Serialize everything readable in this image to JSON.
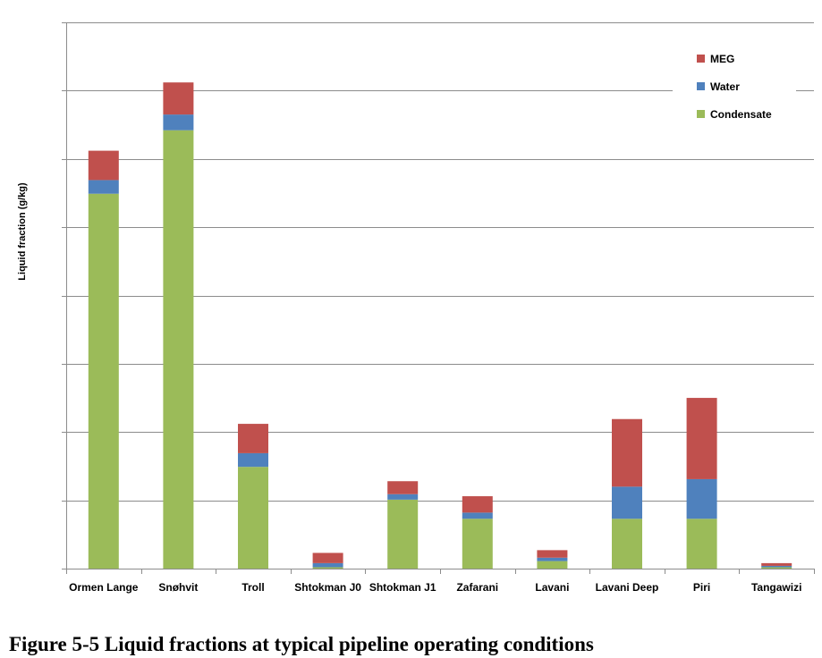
{
  "caption": "Figure 5-5 Liquid fractions at typical pipeline operating conditions",
  "chart_data": {
    "type": "bar",
    "stacked": true,
    "title": "",
    "xlabel": "",
    "ylabel": "Liquid fraction (g/kg)",
    "ylim": [
      0,
      8
    ],
    "y_gridlines": [
      1,
      2,
      3,
      4,
      5,
      6,
      7,
      8
    ],
    "y_tick_labels_shown": false,
    "grid": true,
    "legend_position": "top-right",
    "categories": [
      "Ormen Lange",
      "Snøhvit",
      "Troll",
      "Shtokman J0",
      "Shtokman J1",
      "Zafarani",
      "Lavani",
      "Lavani Deep",
      "Piri",
      "Tangawizi"
    ],
    "series": [
      {
        "name": "Condensate",
        "color": "#9bbb59",
        "values": [
          5.49,
          6.42,
          1.49,
          0.02,
          1.01,
          0.73,
          0.11,
          0.73,
          0.73,
          0.02
        ]
      },
      {
        "name": "Water",
        "color": "#4f81bd",
        "values": [
          0.2,
          0.23,
          0.2,
          0.06,
          0.08,
          0.09,
          0.05,
          0.47,
          0.58,
          0.02
        ]
      },
      {
        "name": "MEG",
        "color": "#c0504d",
        "values": [
          0.43,
          0.47,
          0.43,
          0.15,
          0.19,
          0.24,
          0.11,
          0.99,
          1.19,
          0.04
        ]
      }
    ],
    "legend_order": [
      "MEG",
      "Water",
      "Condensate"
    ]
  }
}
